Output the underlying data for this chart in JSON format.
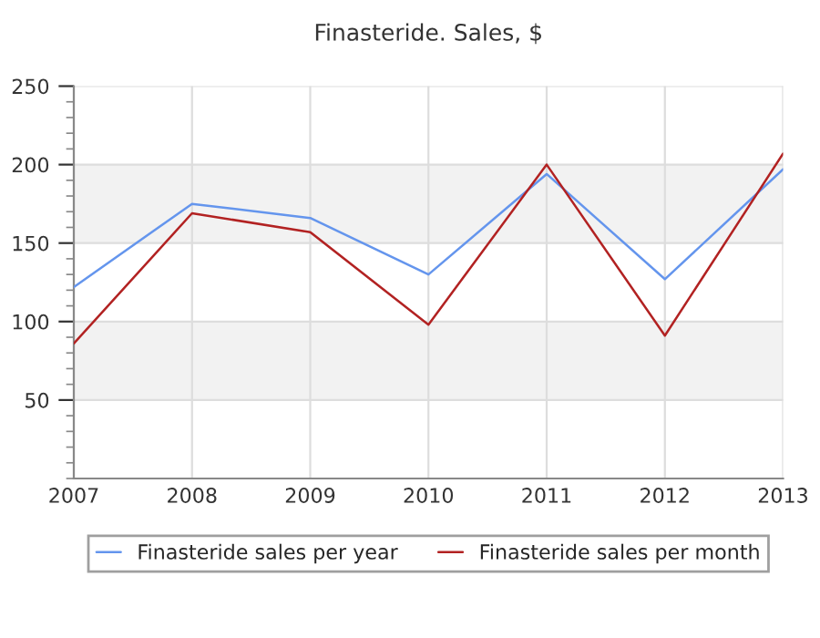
{
  "chart_data": {
    "type": "line",
    "title": "Finasteride. Sales, $",
    "x": [
      2007,
      2008,
      2009,
      2010,
      2011,
      2012,
      2013
    ],
    "series": [
      {
        "name": "Finasteride sales per year",
        "color": "#6495ed",
        "values": [
          122,
          175,
          166,
          130,
          194,
          127,
          197
        ]
      },
      {
        "name": "Finasteride sales per month",
        "color": "#b22222",
        "values": [
          86,
          169,
          157,
          98,
          200,
          91,
          207
        ]
      }
    ],
    "xlim": [
      2007,
      2013
    ],
    "xticks": [
      2007,
      2008,
      2009,
      2010,
      2011,
      2012,
      2013
    ],
    "ylim": [
      0,
      250
    ],
    "yticks": [
      50,
      100,
      150,
      200,
      250
    ],
    "bands": [
      {
        "axis": "y",
        "from": 50,
        "to": 100,
        "color": "#f2f2f2"
      },
      {
        "axis": "y",
        "from": 150,
        "to": 200,
        "color": "#f2f2f2"
      }
    ],
    "grid": true,
    "legend": "bottom",
    "marker": "none",
    "line_style": "solid"
  }
}
